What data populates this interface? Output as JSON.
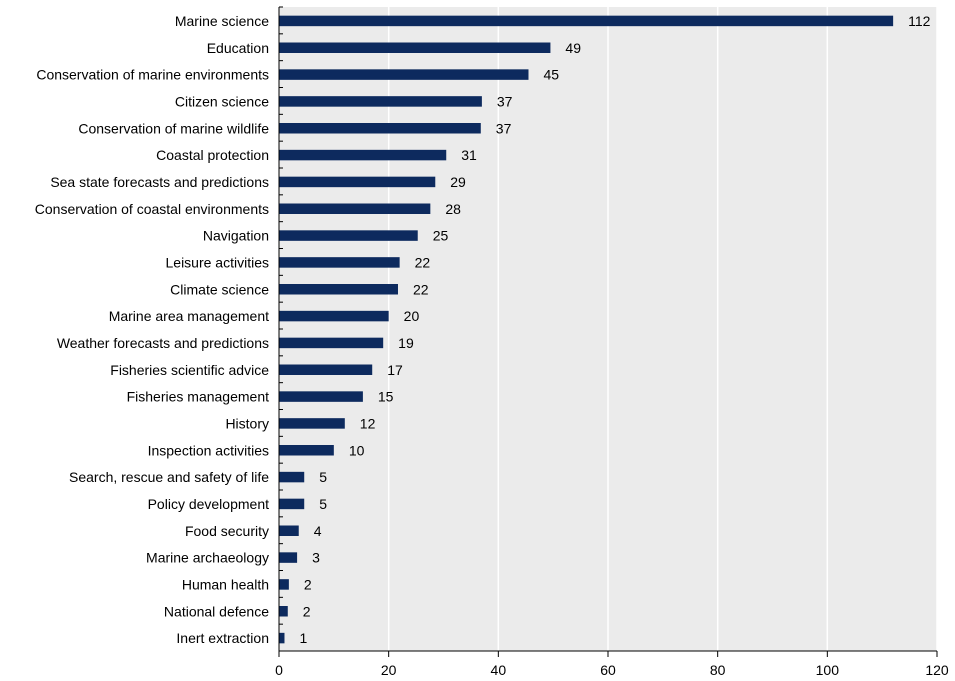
{
  "chart_data": {
    "type": "bar",
    "orientation": "horizontal",
    "categories": [
      "Marine science",
      "Education",
      "Conservation of marine environments",
      "Citizen science",
      "Conservation of marine wildlife",
      "Coastal protection",
      "Sea state forecasts and predictions",
      "Conservation of coastal environments",
      "Navigation",
      "Leisure activities",
      "Climate science",
      "Marine area management",
      "Weather forecasts and predictions",
      "Fisheries scientific advice",
      "Fisheries management",
      "History",
      "Inspection activities",
      "Search, rescue and safety of life",
      "Policy development",
      "Food security",
      "Marine archaeology",
      "Human health",
      "National defence",
      "Inert extraction"
    ],
    "values": [
      112,
      49,
      45,
      37,
      37,
      31,
      29,
      28,
      25,
      22,
      22,
      20,
      19,
      17,
      15,
      12,
      10,
      5,
      5,
      4,
      3,
      2,
      2,
      1
    ],
    "bar_lengths": [
      112,
      49.5,
      45.5,
      37,
      36.8,
      30.5,
      28.5,
      27.6,
      25.3,
      22,
      21.7,
      20,
      19,
      17,
      15.3,
      12,
      10,
      4.6,
      4.6,
      3.6,
      3.3,
      1.8,
      1.6,
      1
    ],
    "xlim": [
      0,
      120
    ],
    "xticks": [
      "0",
      "20",
      "40",
      "60",
      "80",
      "100",
      "120"
    ],
    "xlabel": "",
    "ylabel": "",
    "title": "",
    "grid": "vertical",
    "colors": {
      "bar": "#0d2a5e",
      "plot_background": "#ebebeb",
      "gridline": "#ffffff",
      "axis": "#000000"
    }
  }
}
